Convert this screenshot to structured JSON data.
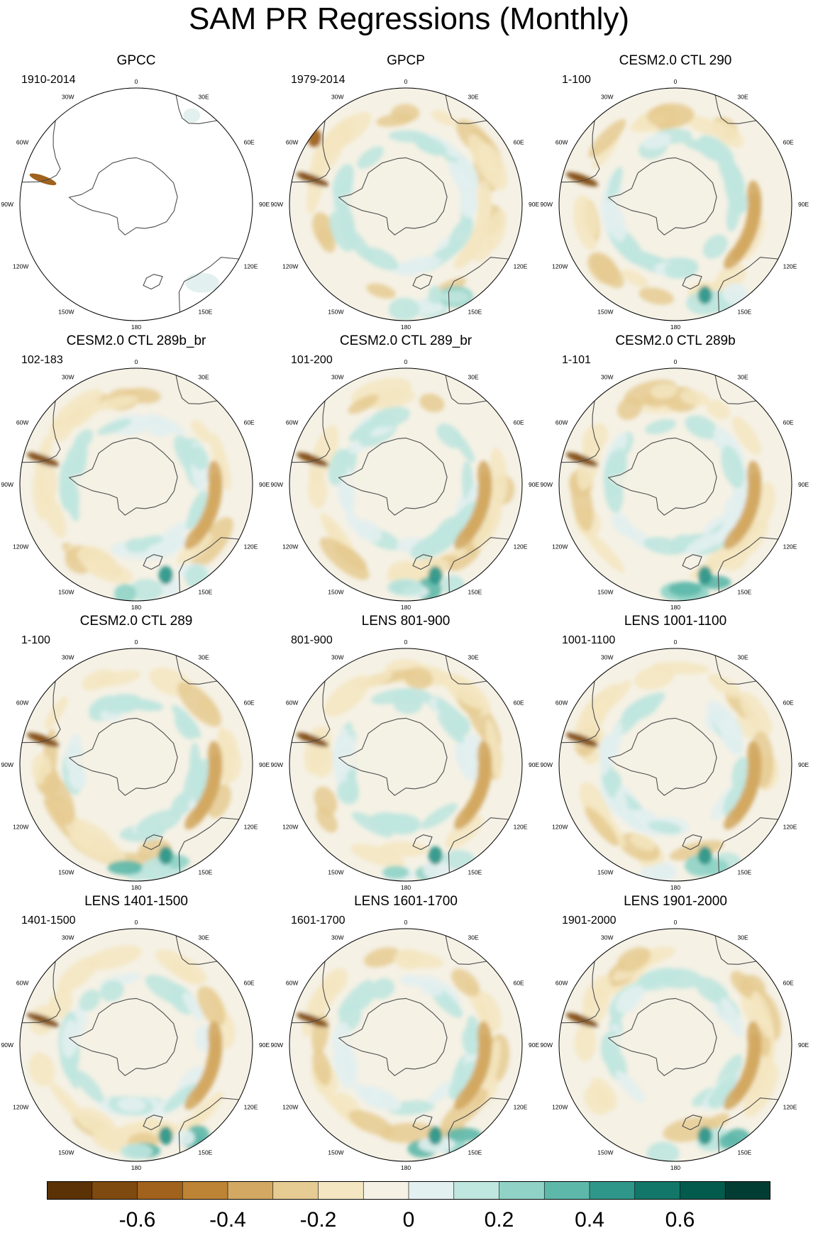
{
  "figure": {
    "title": "SAM PR Regressions (Monthly)",
    "panels": [
      {
        "id": "gpcc",
        "title": "GPCC",
        "period": "1910-2014",
        "coverage": "land-only"
      },
      {
        "id": "gpcp",
        "title": "GPCP",
        "period": "1979-2014",
        "coverage": "full"
      },
      {
        "id": "ctl290",
        "title": "CESM2.0 CTL 290",
        "period": "1-100",
        "coverage": "full"
      },
      {
        "id": "ctl289b_br",
        "title": "CESM2.0 CTL 289b_br",
        "period": "102-183",
        "coverage": "full"
      },
      {
        "id": "ctl289_br",
        "title": "CESM2.0 CTL 289_br",
        "period": "101-200",
        "coverage": "full"
      },
      {
        "id": "ctl289b",
        "title": "CESM2.0 CTL 289b",
        "period": "1-101",
        "coverage": "full"
      },
      {
        "id": "ctl289",
        "title": "CESM2.0 CTL 289",
        "period": "1-100",
        "coverage": "full"
      },
      {
        "id": "lens801",
        "title": "LENS 801-900",
        "period": "801-900",
        "coverage": "full"
      },
      {
        "id": "lens1001",
        "title": "LENS 1001-1100",
        "period": "1001-1100",
        "coverage": "full"
      },
      {
        "id": "lens1401",
        "title": "LENS 1401-1500",
        "period": "1401-1500",
        "coverage": "full"
      },
      {
        "id": "lens1601",
        "title": "LENS 1601-1700",
        "period": "1601-1700",
        "coverage": "full"
      },
      {
        "id": "lens1901",
        "title": "LENS 1901-2000",
        "period": "1901-2000",
        "coverage": "full"
      }
    ],
    "longitude_labels": [
      "0",
      "30E",
      "60E",
      "90E",
      "120E",
      "150E",
      "180",
      "150W",
      "120W",
      "90W",
      "60W",
      "30W"
    ],
    "colorbar": {
      "colors": [
        "#5b3205",
        "#7f4a0f",
        "#a0621c",
        "#be8435",
        "#d3a862",
        "#e6cb92",
        "#f4e6c1",
        "#f5f1e5",
        "#e2f0ef",
        "#bfe6df",
        "#90d3c6",
        "#5db8aa",
        "#2f978a",
        "#127769",
        "#035b4d",
        "#023d33"
      ],
      "tick_labels": [
        "-0.6",
        "-0.4",
        "-0.2",
        "0",
        "0.2",
        "0.4",
        "0.6"
      ],
      "tick_values": [
        -0.6,
        -0.4,
        -0.2,
        0,
        0.2,
        0.4,
        0.6
      ]
    }
  }
}
